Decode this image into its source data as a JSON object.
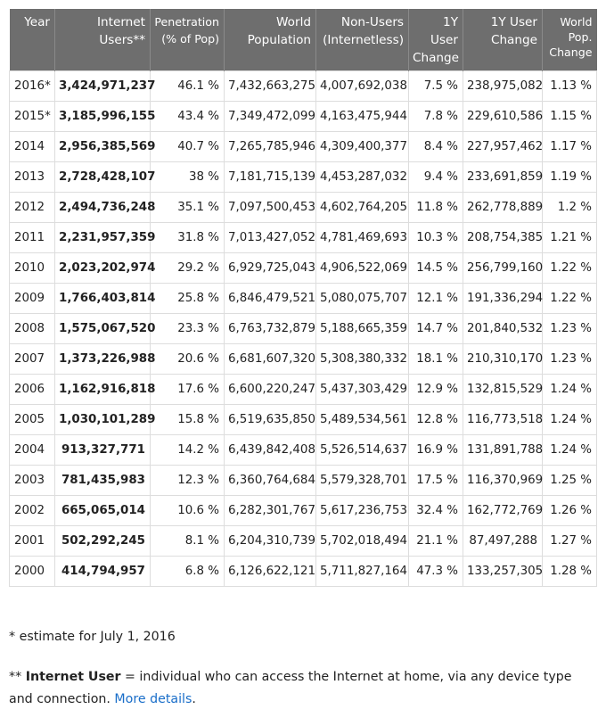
{
  "table": {
    "headers": [
      {
        "line1": "Year",
        "line2": ""
      },
      {
        "line1": "Internet",
        "line2": "Users**"
      },
      {
        "line1": "Penetration",
        "line2": "(% of Pop)"
      },
      {
        "line1": "World",
        "line2": "Population"
      },
      {
        "line1": "Non-Users",
        "line2": "(Internetless)"
      },
      {
        "line1": "1Y User",
        "line2": "Change"
      },
      {
        "line1": "1Y User",
        "line2": "Change"
      },
      {
        "line1": "World",
        "line2": "Pop.",
        "line3": "Change"
      }
    ],
    "rows": [
      [
        "2016*",
        "3,424,971,237",
        "46.1 %",
        "7,432,663,275",
        "4,007,692,038",
        "7.5 %",
        "238,975,082",
        "1.13 %"
      ],
      [
        "2015*",
        "3,185,996,155",
        "43.4 %",
        "7,349,472,099",
        "4,163,475,944",
        "7.8 %",
        "229,610,586",
        "1.15 %"
      ],
      [
        "2014",
        "2,956,385,569",
        "40.7 %",
        "7,265,785,946",
        "4,309,400,377",
        "8.4 %",
        "227,957,462",
        "1.17 %"
      ],
      [
        "2013",
        "2,728,428,107",
        "38 %",
        "7,181,715,139",
        "4,453,287,032",
        "9.4 %",
        "233,691,859",
        "1.19 %"
      ],
      [
        "2012",
        "2,494,736,248",
        "35.1 %",
        "7,097,500,453",
        "4,602,764,205",
        "11.8 %",
        "262,778,889",
        "1.2 %"
      ],
      [
        "2011",
        "2,231,957,359",
        "31.8 %",
        "7,013,427,052",
        "4,781,469,693",
        "10.3 %",
        "208,754,385",
        "1.21 %"
      ],
      [
        "2010",
        "2,023,202,974",
        "29.2 %",
        "6,929,725,043",
        "4,906,522,069",
        "14.5 %",
        "256,799,160",
        "1.22 %"
      ],
      [
        "2009",
        "1,766,403,814",
        "25.8 %",
        "6,846,479,521",
        "5,080,075,707",
        "12.1 %",
        "191,336,294",
        "1.22 %"
      ],
      [
        "2008",
        "1,575,067,520",
        "23.3 %",
        "6,763,732,879",
        "5,188,665,359",
        "14.7 %",
        "201,840,532",
        "1.23 %"
      ],
      [
        "2007",
        "1,373,226,988",
        "20.6 %",
        "6,681,607,320",
        "5,308,380,332",
        "18.1 %",
        "210,310,170",
        "1.23 %"
      ],
      [
        "2006",
        "1,162,916,818",
        "17.6 %",
        "6,600,220,247",
        "5,437,303,429",
        "12.9 %",
        "132,815,529",
        "1.24 %"
      ],
      [
        "2005",
        "1,030,101,289",
        "15.8 %",
        "6,519,635,850",
        "5,489,534,561",
        "12.8 %",
        "116,773,518",
        "1.24 %"
      ],
      [
        "2004",
        "913,327,771",
        "14.2 %",
        "6,439,842,408",
        "5,526,514,637",
        "16.9 %",
        "131,891,788",
        "1.24 %"
      ],
      [
        "2003",
        "781,435,983",
        "12.3 %",
        "6,360,764,684",
        "5,579,328,701",
        "17.5 %",
        "116,370,969",
        "1.25 %"
      ],
      [
        "2002",
        "665,065,014",
        "10.6 %",
        "6,282,301,767",
        "5,617,236,753",
        "32.4 %",
        "162,772,769",
        "1.26 %"
      ],
      [
        "2001",
        "502,292,245",
        "8.1 %",
        "6,204,310,739",
        "5,702,018,494",
        "21.1 %",
        "87,497,288",
        "1.27 %"
      ],
      [
        "2000",
        "414,794,957",
        "6.8 %",
        "6,126,622,121",
        "5,711,827,164",
        "47.3 %",
        "133,257,305",
        "1.28 %"
      ]
    ]
  },
  "notes": {
    "estimate": "* estimate for July 1, 2016",
    "definition_prefix": "** ",
    "definition_term": "Internet User",
    "definition_text": " = individual who can access the Internet at home, via any device type and connection. ",
    "link_label": "More details",
    "trailing": "."
  }
}
